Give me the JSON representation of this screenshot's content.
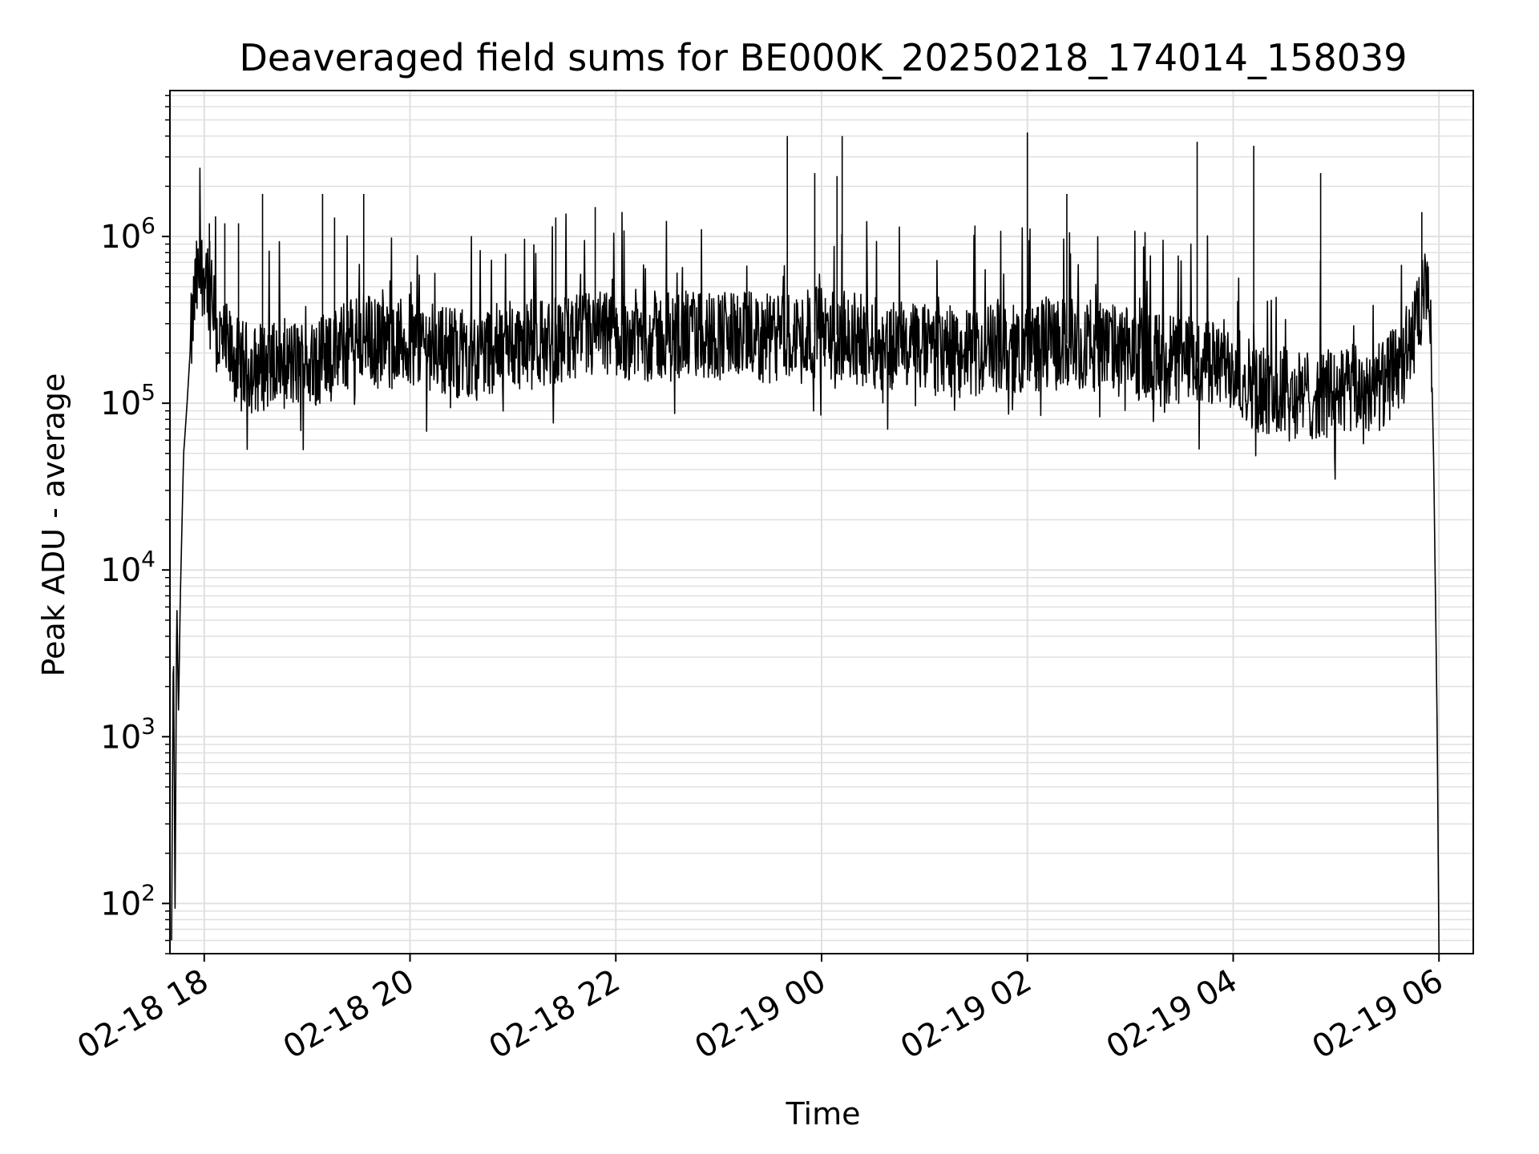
{
  "chart_data": {
    "type": "line",
    "title": "Deaveraged field sums for BE000K_20250218_174014_158039",
    "xlabel": "Time",
    "ylabel": "Peak ADU - average",
    "yscale": "log",
    "grid": true,
    "grid_minor": true,
    "line_color": "#000000",
    "grid_color": "#e0e0e0",
    "xlim": [
      "2025-02-18 17:40",
      "2025-02-19 06:20"
    ],
    "ylim": [
      50,
      7500000
    ],
    "xticks": [
      {
        "value": "2025-02-18 18:00",
        "label": "02-18 18"
      },
      {
        "value": "2025-02-18 20:00",
        "label": "02-18 20"
      },
      {
        "value": "2025-02-18 22:00",
        "label": "02-18 22"
      },
      {
        "value": "2025-02-19 00:00",
        "label": "02-19 00"
      },
      {
        "value": "2025-02-19 02:00",
        "label": "02-19 02"
      },
      {
        "value": "2025-02-19 04:00",
        "label": "02-19 04"
      },
      {
        "value": "2025-02-19 06:00",
        "label": "02-19 06"
      }
    ],
    "yticks": [
      {
        "value": 100,
        "base": "10",
        "exp": "2"
      },
      {
        "value": 1000,
        "base": "10",
        "exp": "3"
      },
      {
        "value": 10000,
        "base": "10",
        "exp": "4"
      },
      {
        "value": 100000,
        "base": "10",
        "exp": "5"
      },
      {
        "value": 1000000,
        "base": "10",
        "exp": "6"
      }
    ],
    "series": [
      {
        "points": [
          [
            "2025-02-18 17:41",
            60
          ],
          [
            "2025-02-18 17:42",
            4500
          ],
          [
            "2025-02-18 17:43",
            90
          ],
          [
            "2025-02-18 17:44",
            7000
          ],
          [
            "2025-02-18 17:45",
            1400
          ],
          [
            "2025-02-18 17:46",
            6500
          ],
          [
            "2025-02-18 17:48",
            50000
          ],
          [
            "2025-02-18 17:50",
            100000
          ],
          [
            "2025-02-18 17:52",
            220000
          ],
          [
            "2025-02-18 17:55",
            500000
          ],
          [
            "2025-02-18 17:58",
            600000
          ],
          [
            "2025-02-18 18:01",
            650000
          ],
          [
            "2025-02-18 18:04",
            450000
          ],
          [
            "2025-02-18 18:07",
            250000
          ],
          [
            "2025-02-18 18:10",
            230000
          ],
          [
            "2025-02-18 18:15",
            200000
          ],
          [
            "2025-02-18 18:20",
            170000
          ],
          [
            "2025-02-18 18:30",
            160000
          ],
          [
            "2025-02-18 18:40",
            180000
          ],
          [
            "2025-02-18 18:50",
            170000
          ],
          [
            "2025-02-18 19:00",
            175000
          ],
          [
            "2025-02-18 19:15",
            190000
          ],
          [
            "2025-02-18 19:30",
            260000
          ],
          [
            "2025-02-18 19:45",
            220000
          ],
          [
            "2025-02-18 20:00",
            240000
          ],
          [
            "2025-02-18 20:30",
            200000
          ],
          [
            "2025-02-18 21:00",
            220000
          ],
          [
            "2025-02-18 21:30",
            240000
          ],
          [
            "2025-02-18 22:00",
            260000
          ],
          [
            "2025-02-18 22:30",
            250000
          ],
          [
            "2025-02-18 23:00",
            260000
          ],
          [
            "2025-02-18 23:30",
            240000
          ],
          [
            "2025-02-19 00:00",
            270000
          ],
          [
            "2025-02-19 00:30",
            230000
          ],
          [
            "2025-02-19 01:00",
            210000
          ],
          [
            "2025-02-19 01:30",
            200000
          ],
          [
            "2025-02-19 02:00",
            220000
          ],
          [
            "2025-02-19 02:30",
            230000
          ],
          [
            "2025-02-19 03:00",
            200000
          ],
          [
            "2025-02-19 03:30",
            180000
          ],
          [
            "2025-02-19 04:00",
            170000
          ],
          [
            "2025-02-19 04:15",
            120000
          ],
          [
            "2025-02-19 04:30",
            110000
          ],
          [
            "2025-02-19 05:00",
            115000
          ],
          [
            "2025-02-19 05:30",
            130000
          ],
          [
            "2025-02-19 05:45",
            250000
          ],
          [
            "2025-02-19 05:52",
            450000
          ],
          [
            "2025-02-19 05:55",
            400000
          ],
          [
            "2025-02-19 05:57",
            40000
          ],
          [
            "2025-02-19 05:59",
            1000
          ],
          [
            "2025-02-19 06:00",
            50
          ]
        ],
        "spikes": [
          [
            "2025-02-18 18:03",
            1200000
          ],
          [
            "2025-02-18 18:12",
            1200000
          ],
          [
            "2025-02-18 18:20",
            1200000
          ],
          [
            "2025-02-18 18:34",
            1800000
          ],
          [
            "2025-02-18 19:09",
            1800000
          ],
          [
            "2025-02-18 19:16",
            1300000
          ],
          [
            "2025-02-18 19:33",
            1800000
          ],
          [
            "2025-02-18 21:25",
            1300000
          ],
          [
            "2025-02-18 21:48",
            1500000
          ],
          [
            "2025-02-18 23:40",
            4000000
          ],
          [
            "2025-02-18 23:56",
            2400000
          ],
          [
            "2025-02-19 00:09",
            2300000
          ],
          [
            "2025-02-19 00:12",
            4000000
          ],
          [
            "2025-02-19 02:00",
            4200000
          ],
          [
            "2025-02-19 02:23",
            1800000
          ],
          [
            "2025-02-19 03:39",
            3700000
          ],
          [
            "2025-02-19 04:12",
            3500000
          ],
          [
            "2025-02-19 04:51",
            2400000
          ],
          [
            "2025-02-19 05:50",
            1400000
          ]
        ],
        "noise_low": 100000,
        "noise_high": 600000
      }
    ]
  }
}
